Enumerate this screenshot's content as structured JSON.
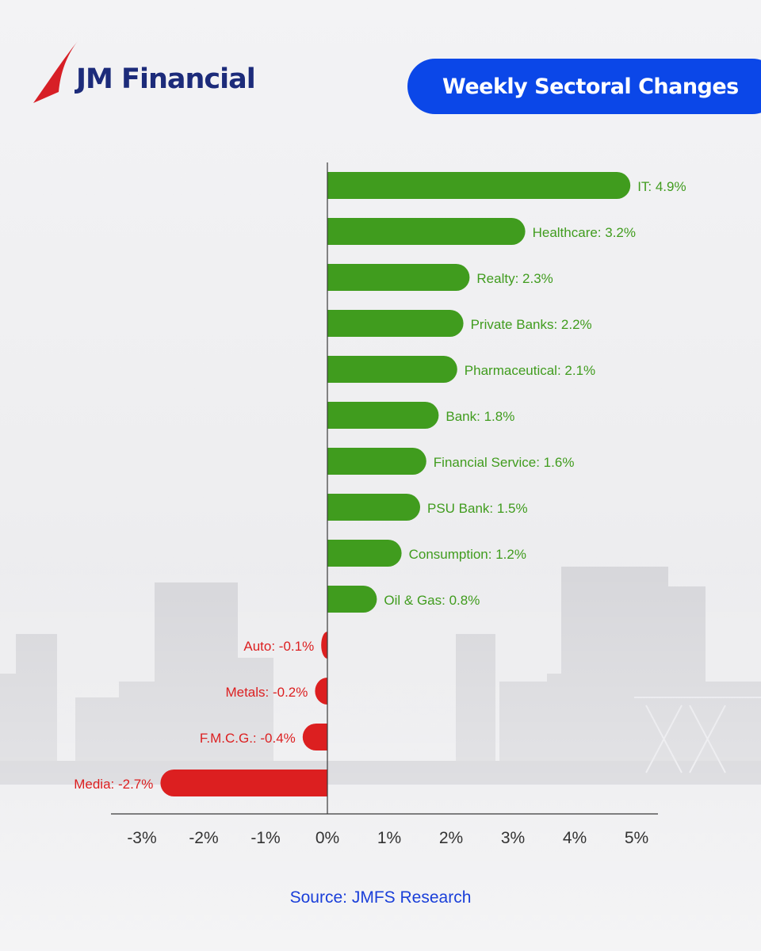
{
  "brand": {
    "name": "JM Financial"
  },
  "header": {
    "title": "Weekly Sectoral Changes"
  },
  "source": "Source: JMFS Research",
  "colors": {
    "positive": "#409c1e",
    "negative": "#dc1f20",
    "title_bg": "#0b47e8",
    "brand": "#1c2b7a",
    "logo_red": "#d71f26",
    "source": "#1a3fd9"
  },
  "chart_data": {
    "type": "bar",
    "orientation": "horizontal",
    "categories": [
      "IT",
      "Healthcare",
      "Realty",
      "Private Banks",
      "Pharmaceutical",
      "Bank",
      "Financial Service",
      "PSU Bank",
      "Consumption",
      "Oil & Gas",
      "Auto",
      "Metals",
      "F.M.C.G.",
      "Media"
    ],
    "values": [
      4.9,
      3.2,
      2.3,
      2.2,
      2.1,
      1.8,
      1.6,
      1.5,
      1.2,
      0.8,
      -0.1,
      -0.2,
      -0.4,
      -2.7
    ],
    "labels": [
      "IT: 4.9%",
      "Healthcare: 3.2%",
      "Realty: 2.3%",
      "Private Banks: 2.2%",
      "Pharmaceutical: 2.1%",
      "Bank: 1.8%",
      "Financial Service: 1.6%",
      "PSU Bank: 1.5%",
      "Consumption: 1.2%",
      "Oil & Gas: 0.8%",
      "Auto: -0.1%",
      "Metals: -0.2%",
      "F.M.C.G.: -0.4%",
      "Media: -2.7%"
    ],
    "xticks": [
      -3,
      -2,
      -1,
      0,
      1,
      2,
      3,
      4,
      5
    ],
    "xtick_labels": [
      "-3%",
      "-2%",
      "-1%",
      "0%",
      "1%",
      "2%",
      "3%",
      "4%",
      "5%"
    ],
    "xlim": [
      -3.5,
      5.35
    ],
    "grid": false,
    "legend": "none"
  }
}
